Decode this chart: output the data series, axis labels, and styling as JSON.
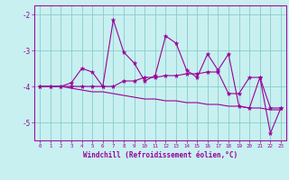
{
  "title": "",
  "xlabel": "Windchill (Refroidissement éolien,°C)",
  "background_color": "#c8f0f0",
  "line_color": "#990099",
  "grid_color": "#88cccc",
  "xlim": [
    -0.5,
    23.5
  ],
  "ylim": [
    -5.5,
    -1.75
  ],
  "yticks": [
    -5,
    -4,
    -3,
    -2
  ],
  "xticks": [
    0,
    1,
    2,
    3,
    4,
    5,
    6,
    7,
    8,
    9,
    10,
    11,
    12,
    13,
    14,
    15,
    16,
    17,
    18,
    19,
    20,
    21,
    22,
    23
  ],
  "line1_x": [
    0,
    1,
    2,
    3,
    4,
    5,
    6,
    7,
    8,
    9,
    10,
    11,
    12,
    13,
    14,
    15,
    16,
    17,
    18,
    19,
    20,
    21,
    22,
    23
  ],
  "line1_y": [
    -4.0,
    -4.0,
    -4.0,
    -3.9,
    -3.5,
    -3.6,
    -4.0,
    -2.15,
    -3.05,
    -3.35,
    -3.85,
    -3.7,
    -2.6,
    -2.8,
    -3.55,
    -3.75,
    -3.1,
    -3.55,
    -3.1,
    -4.55,
    -4.6,
    -3.75,
    -5.3,
    -4.6
  ],
  "line2_x": [
    0,
    1,
    2,
    3,
    4,
    5,
    6,
    7,
    8,
    9,
    10,
    11,
    12,
    13,
    14,
    15,
    16,
    17,
    18,
    19,
    20,
    21,
    22,
    23
  ],
  "line2_y": [
    -4.0,
    -4.0,
    -4.0,
    -4.0,
    -4.0,
    -4.0,
    -4.0,
    -4.0,
    -3.85,
    -3.85,
    -3.75,
    -3.75,
    -3.7,
    -3.7,
    -3.65,
    -3.65,
    -3.6,
    -3.6,
    -4.2,
    -4.2,
    -3.75,
    -3.75,
    -4.6,
    -4.6
  ],
  "line3_x": [
    0,
    1,
    2,
    3,
    4,
    5,
    6,
    7,
    8,
    9,
    10,
    11,
    12,
    13,
    14,
    15,
    16,
    17,
    18,
    19,
    20,
    21,
    22,
    23
  ],
  "line3_y": [
    -4.0,
    -4.0,
    -4.0,
    -4.05,
    -4.1,
    -4.15,
    -4.15,
    -4.2,
    -4.25,
    -4.3,
    -4.35,
    -4.35,
    -4.4,
    -4.4,
    -4.45,
    -4.45,
    -4.5,
    -4.5,
    -4.55,
    -4.55,
    -4.6,
    -4.6,
    -4.65,
    -4.65
  ]
}
